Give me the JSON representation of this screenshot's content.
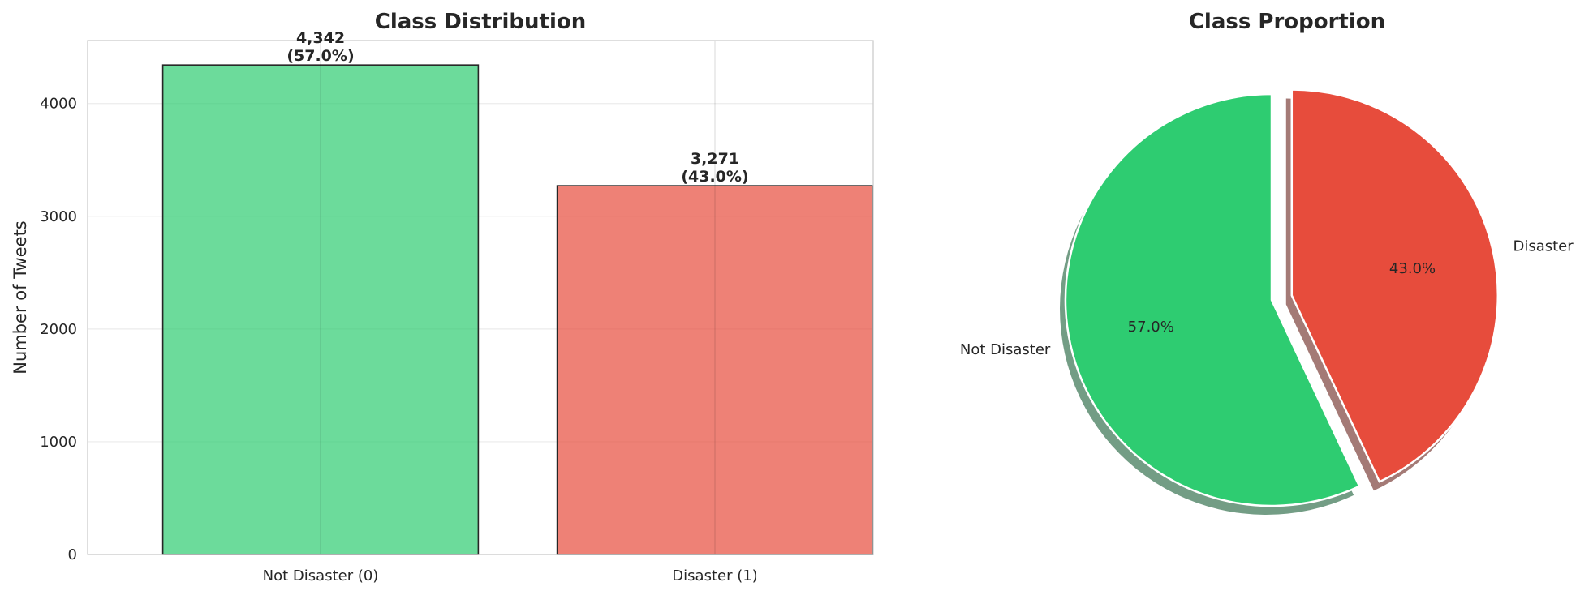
{
  "chart_data": [
    {
      "type": "bar",
      "title": "Class Distribution",
      "xlabel": "",
      "ylabel": "Number of Tweets",
      "categories": [
        "Not Disaster (0)",
        "Disaster (1)"
      ],
      "values": [
        4342,
        3271
      ],
      "value_labels": [
        "4,342",
        "3,271"
      ],
      "percent_labels": [
        "(57.0%)",
        "(43.0%)"
      ],
      "colors": [
        "#2ecc71",
        "#e74c3c"
      ],
      "ylim": [
        0,
        4559
      ],
      "yticks": [
        0,
        1000,
        2000,
        3000,
        4000
      ],
      "grid": true
    },
    {
      "type": "pie",
      "title": "Class Proportion",
      "labels": [
        "Not Disaster",
        "Disaster"
      ],
      "values": [
        57.0,
        43.0
      ],
      "pct_labels": [
        "57.0%",
        "43.0%"
      ],
      "colors": [
        "#2ecc71",
        "#e74c3c"
      ],
      "exploded": "Disaster",
      "shadow": true
    }
  ]
}
